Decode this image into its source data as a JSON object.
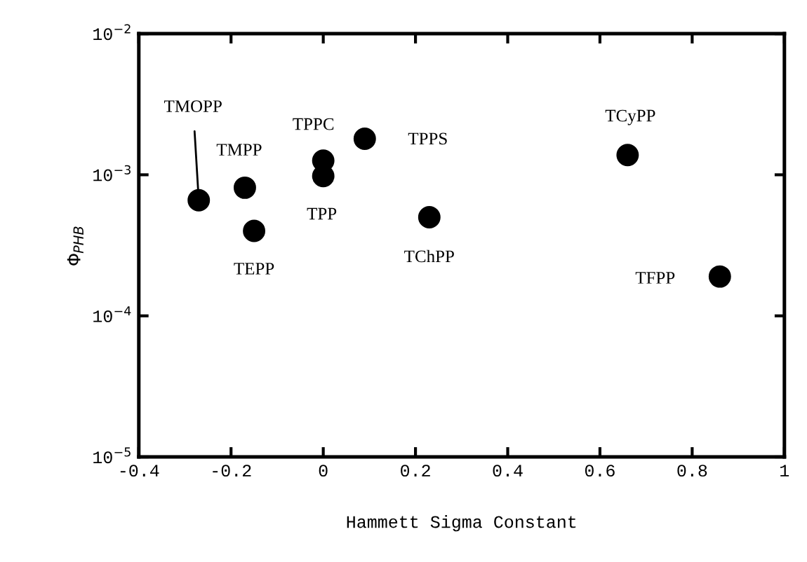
{
  "chart_data": {
    "type": "scatter",
    "xlabel": "Hammett Sigma Constant",
    "ylabel": "Φ$_{PHB}$",
    "x": [
      -0.27,
      -0.17,
      -0.15,
      0.0,
      0.0,
      0.09,
      0.23,
      0.66,
      0.86
    ],
    "series": [
      {
        "color": "#000000",
        "values": [
          0.00066,
          0.00081,
          0.0004,
          0.00126,
          0.00098,
          0.0018,
          0.0005,
          0.00138,
          0.00019
        ]
      }
    ],
    "annotations": [
      {
        "text": "TMOPP",
        "x": -0.27,
        "y": 0.00066
      },
      {
        "text": "TMPP",
        "x": -0.17,
        "y": 0.00081
      },
      {
        "text": "TEPP",
        "x": -0.15,
        "y": 0.0004
      },
      {
        "text": "TPPC",
        "x": 0.0,
        "y": 0.00126
      },
      {
        "text": "TPP",
        "x": 0.0,
        "y": 0.00098
      },
      {
        "text": "TPPS",
        "x": 0.09,
        "y": 0.0018
      },
      {
        "text": "TChPP",
        "x": 0.23,
        "y": 0.0005
      },
      {
        "text": "TCyPP",
        "x": 0.66,
        "y": 0.00138
      },
      {
        "text": "TFPP",
        "x": 0.86,
        "y": 0.00019
      }
    ],
    "log": "y",
    "marker": "circle",
    "grid": false,
    "legend": false,
    "xlim": [
      -0.4,
      1
    ],
    "xticks": [
      -0.4,
      -0.2,
      0,
      0.2,
      0.4,
      0.6,
      0.8,
      1
    ],
    "ylim": [
      1e-05,
      0.01
    ],
    "yticks": [
      {
        "value": 1e-05,
        "label": "10$^{−5}$"
      },
      {
        "value": 0.0001,
        "label": "10$^{−4}$"
      },
      {
        "value": 0.001,
        "label": "10$^{−3}$"
      },
      {
        "value": 0.01,
        "label": "10$^{−2}$"
      }
    ]
  }
}
